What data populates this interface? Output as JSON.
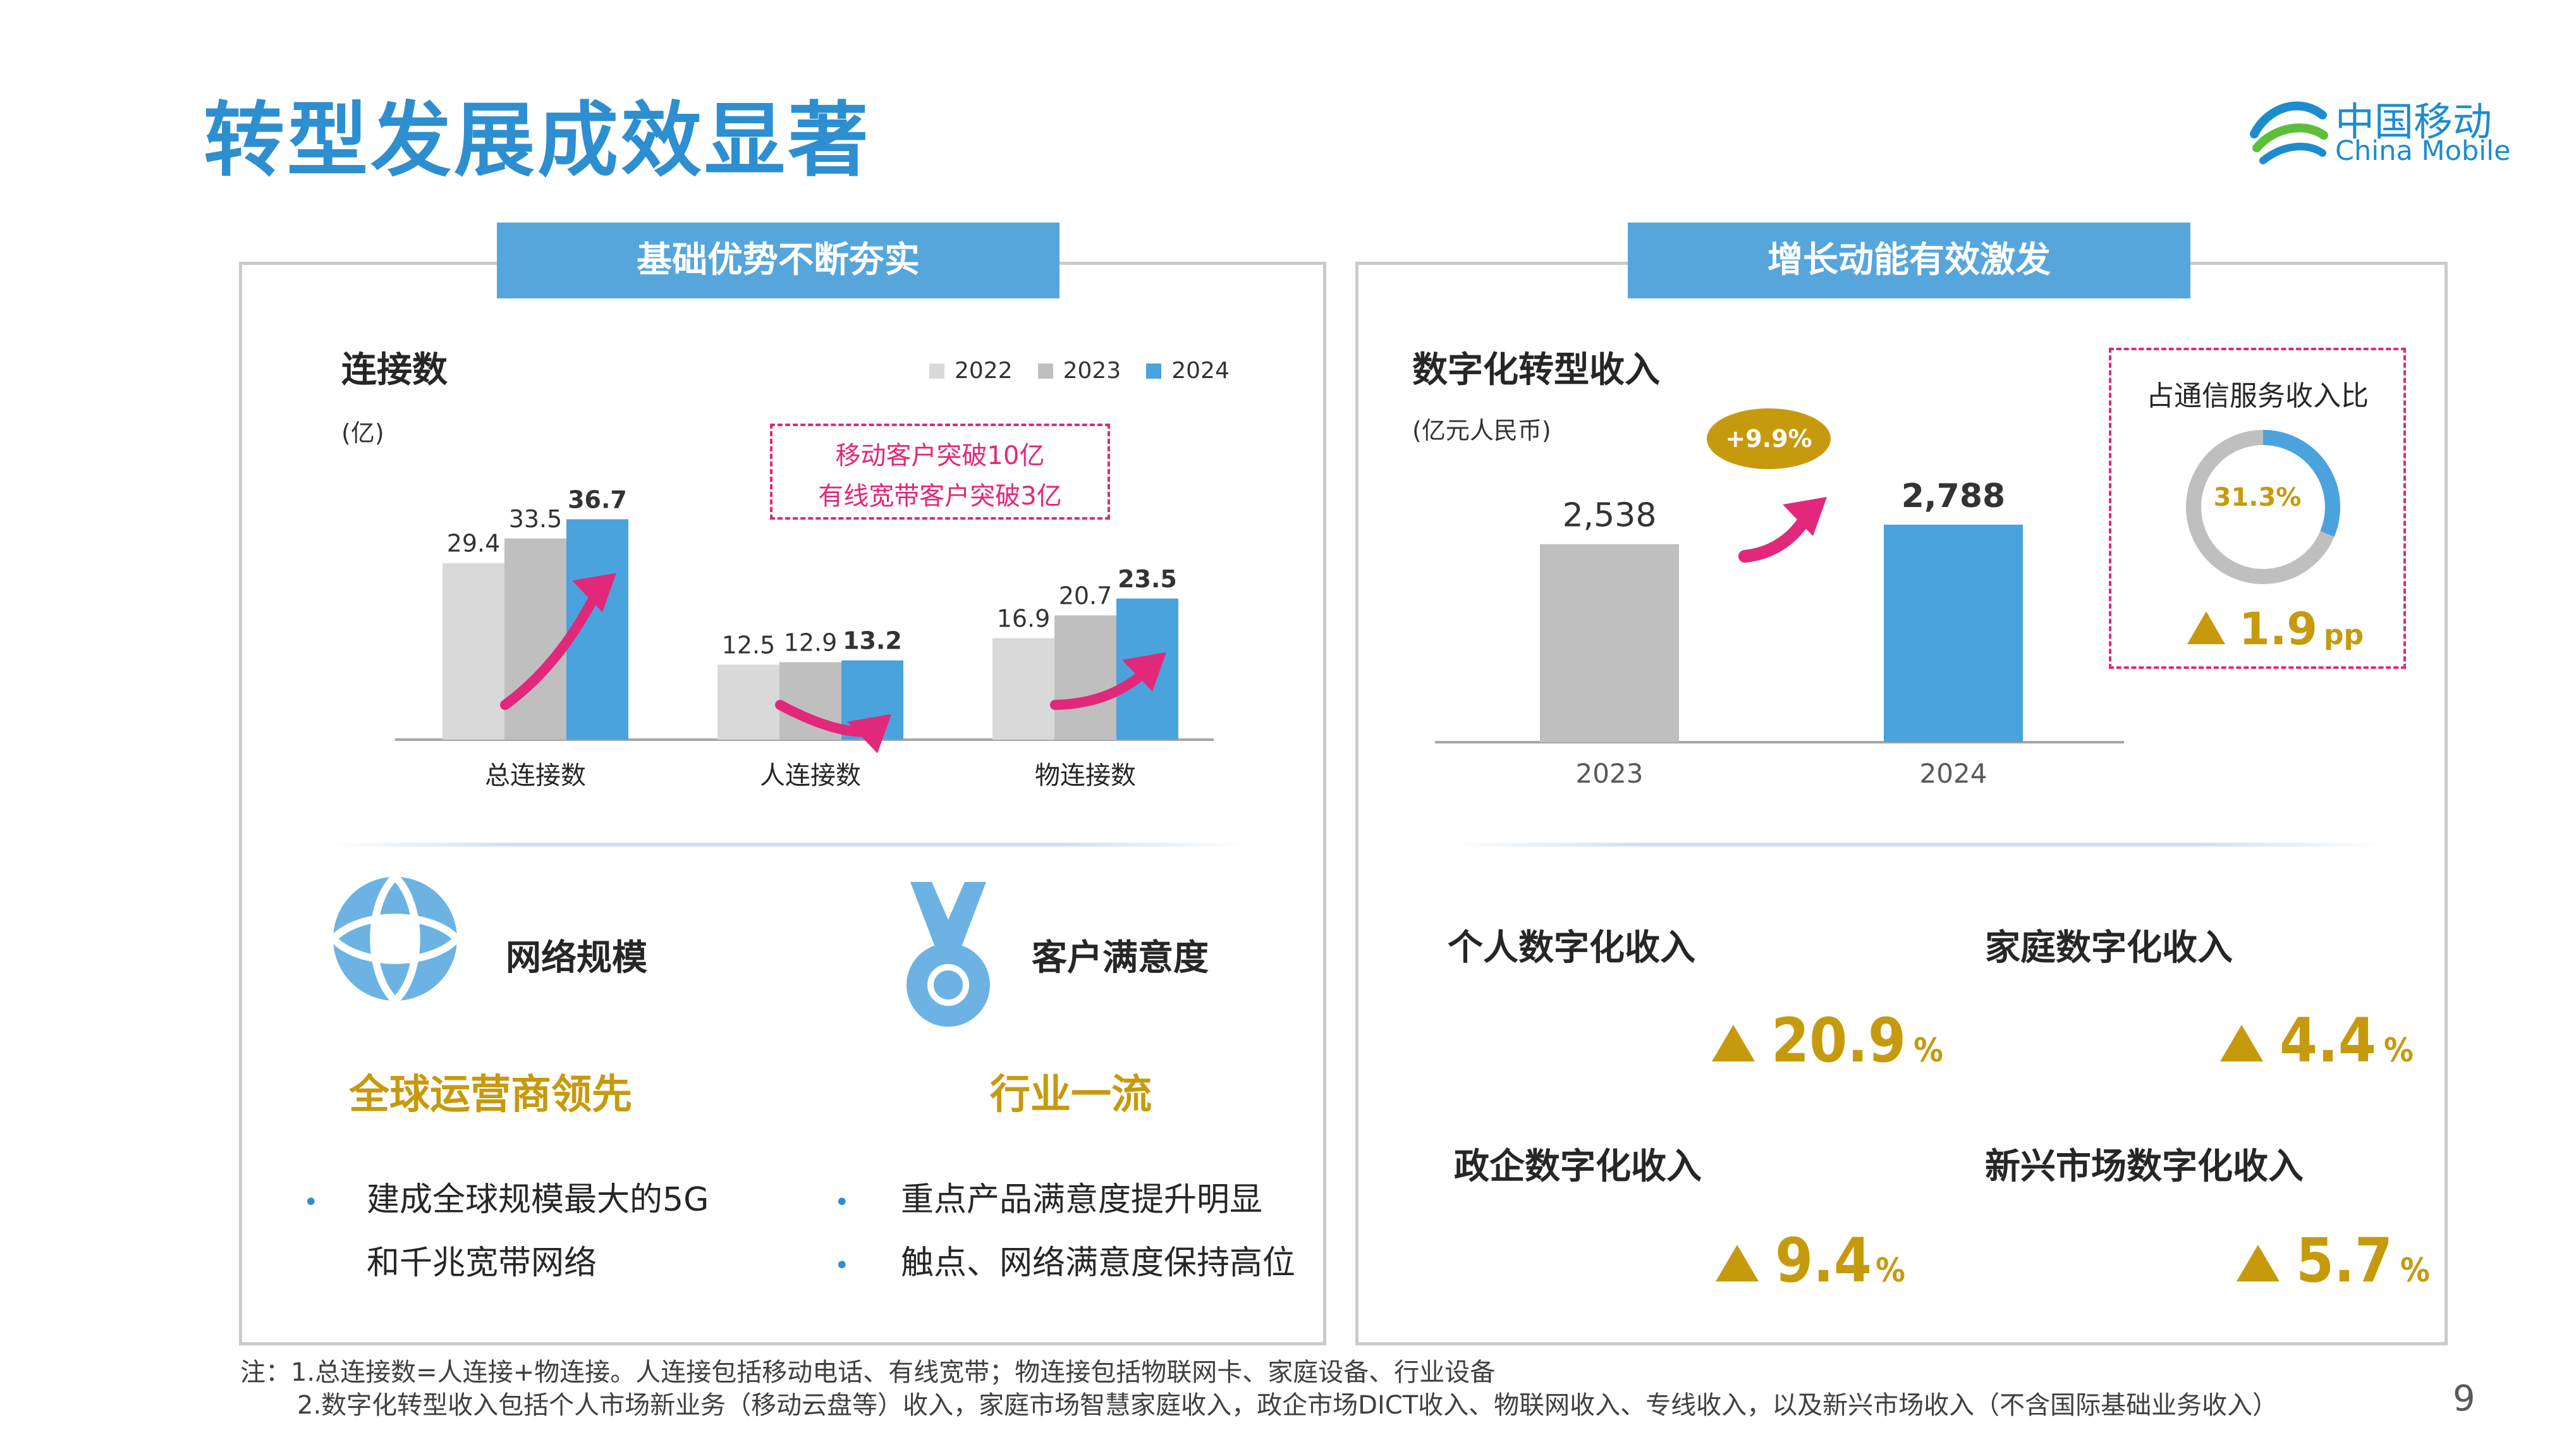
{
  "page": {
    "title": "转型发展成效显著",
    "page_number": "9",
    "logo": {
      "cn": "中国移动",
      "en": "China Mobile"
    }
  },
  "left_panel": {
    "tab": "基础优势不断夯实",
    "chart_title": "连接数",
    "unit": "(亿)",
    "callout": [
      "移动客户突破10亿",
      "有线宽带客户突破3亿"
    ],
    "features": [
      {
        "icon": "globe-icon",
        "label": "网络规模",
        "headline": "全球运营商领先",
        "bullets": [
          "建成全球规模最大的5G",
          "和千兆宽带网络"
        ]
      },
      {
        "icon": "medal-icon",
        "label": "客户满意度",
        "headline": "行业一流",
        "bullets": [
          "重点产品满意度提升明显",
          "触点、网络满意度保持高位"
        ]
      }
    ]
  },
  "right_panel": {
    "tab": "增长动能有效激发",
    "chart_title": "数字化转型收入",
    "unit": "(亿元人民币)",
    "growth_badge": "+9.9%",
    "ratio_box": {
      "label": "占通信服务收入比",
      "value": "31.3%",
      "value_fraction": 0.313,
      "change_value": "1.9",
      "change_unit": "pp"
    },
    "metrics": [
      {
        "label": "个人数字化收入",
        "value": "20.9",
        "unit": "%"
      },
      {
        "label": "家庭数字化收入",
        "value": "4.4",
        "unit": "%"
      },
      {
        "label": "政企数字化收入",
        "value": "9.4",
        "unit": "%"
      },
      {
        "label": "新兴市场数字化收入",
        "value": "5.7",
        "unit": "%"
      }
    ]
  },
  "notes": [
    "注：1.总连接数=人连接+物连接。人连接包括移动电话、有线宽带；物连接包括物联网卡、家庭设备、行业设备",
    "2.数字化转型收入包括个人市场新业务（移动云盘等）收入，家庭市场智慧家庭收入，政企市场DICT收入、物联网收入、专线收入，以及新兴市场收入（不含国际基础业务收入）"
  ],
  "colors": {
    "c2022": "#d9d9d9",
    "c2023": "#bfbfbf",
    "c2024": "#4aa3dc",
    "accent": "#2d8fd0",
    "gold": "#c69a0c",
    "magenta": "#e2287a"
  },
  "chart_data": [
    {
      "type": "bar",
      "title": "连接数",
      "ylabel": "(亿)",
      "categories": [
        "总连接数",
        "人连接数",
        "物连接数"
      ],
      "series": [
        {
          "name": "2022",
          "values": [
            29.4,
            12.5,
            16.9
          ]
        },
        {
          "name": "2023",
          "values": [
            33.5,
            12.9,
            20.7
          ]
        },
        {
          "name": "2024",
          "values": [
            36.7,
            13.2,
            23.5
          ]
        }
      ],
      "ylim": [
        0,
        40
      ],
      "legend": "top-right",
      "grid": false
    },
    {
      "type": "bar",
      "title": "数字化转型收入",
      "ylabel": "(亿元人民币)",
      "categories": [
        "2023",
        "2024"
      ],
      "values": [
        2538,
        2788
      ],
      "value_labels": [
        "2,538",
        "2,788"
      ],
      "ylim": [
        0,
        3500
      ],
      "grid": false
    }
  ]
}
